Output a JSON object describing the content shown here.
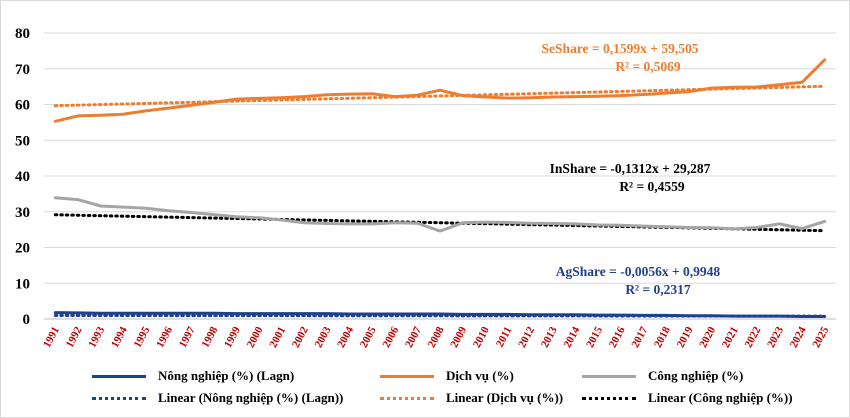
{
  "chart_data": {
    "type": "line",
    "title": "",
    "xlabel": "",
    "ylabel": "",
    "ylim": [
      0,
      80
    ],
    "yticks": [
      0,
      10,
      20,
      30,
      40,
      50,
      60,
      70,
      80
    ],
    "grid": true,
    "legend_position": "bottom",
    "categories": [
      "1991",
      "1992",
      "1993",
      "1994",
      "1995",
      "1996",
      "1997",
      "1998",
      "1999",
      "2000",
      "2001",
      "2002",
      "2003",
      "2004",
      "2005",
      "2006",
      "2007",
      "2008",
      "2009",
      "2010",
      "2011",
      "2012",
      "2013",
      "2014",
      "2015",
      "2016",
      "2017",
      "2018",
      "2019",
      "2020",
      "2021",
      "2022",
      "2023",
      "2024",
      "2025"
    ],
    "series": [
      {
        "name": "Nông nghiệp (%) (Lagn)",
        "color": "#1f3f8f",
        "values": [
          1.8,
          1.7,
          1.6,
          1.6,
          1.6,
          1.6,
          1.6,
          1.6,
          1.5,
          1.5,
          1.5,
          1.5,
          1.5,
          1.4,
          1.4,
          1.4,
          1.4,
          1.4,
          1.3,
          1.3,
          1.3,
          1.2,
          1.2,
          1.2,
          1.1,
          1.1,
          1.0,
          1.0,
          0.9,
          0.9,
          0.8,
          0.8,
          0.8,
          0.7,
          0.7
        ]
      },
      {
        "name": "Dịch vụ (%)",
        "color": "#ed7d31",
        "values": [
          55.3,
          56.8,
          57.0,
          57.3,
          58.2,
          59.0,
          59.8,
          60.6,
          61.5,
          61.7,
          61.9,
          62.2,
          62.7,
          62.9,
          63.0,
          62.2,
          62.6,
          64.0,
          62.5,
          62.1,
          61.8,
          61.9,
          62.1,
          62.2,
          62.3,
          62.5,
          62.8,
          63.2,
          63.6,
          64.6,
          64.8,
          64.9,
          65.5,
          66.2,
          72.5
        ]
      },
      {
        "name": "Công nghiệp (%)",
        "color": "#a5a5a5",
        "values": [
          33.9,
          33.4,
          31.6,
          31.3,
          31.0,
          30.3,
          29.8,
          29.2,
          28.6,
          28.3,
          27.7,
          26.9,
          26.7,
          26.6,
          26.6,
          26.9,
          26.8,
          24.6,
          26.9,
          27.1,
          27.0,
          26.8,
          26.7,
          26.6,
          26.3,
          26.2,
          26.0,
          25.8,
          25.6,
          25.5,
          25.2,
          25.6,
          26.6,
          25.3,
          27.3
        ]
      }
    ],
    "trendlines": [
      {
        "name": "Linear (Nông nghiệp (%) (Lagn))",
        "color": "#1f3f8f",
        "slope": -0.0056,
        "intercept": 0.9948,
        "ann": "linear"
      },
      {
        "name": "Linear (Dịch vụ (%))",
        "color": "#ed7d31",
        "slope": 0.1599,
        "intercept": 59.505
      },
      {
        "name": "Linear (Công nghiệp (%))",
        "color": "#000000",
        "slope": -0.1312,
        "intercept": 29.287
      }
    ],
    "annotations": [
      {
        "line1": "SeShare = 0,1599x + 59,505",
        "line2": "R² = 0,5069",
        "color": "#ed7d31",
        "anchor": "top-right"
      },
      {
        "line1": "InShare = -0,1312x + 29,287",
        "line2": "R² = 0,4559",
        "color": "#000000",
        "anchor": "middle-right"
      },
      {
        "line1": "AgShare = -0,0056x + 0,9948",
        "line2": "R² = 0,2317",
        "color": "#1f3f8f",
        "anchor": "bottom-right"
      }
    ]
  }
}
